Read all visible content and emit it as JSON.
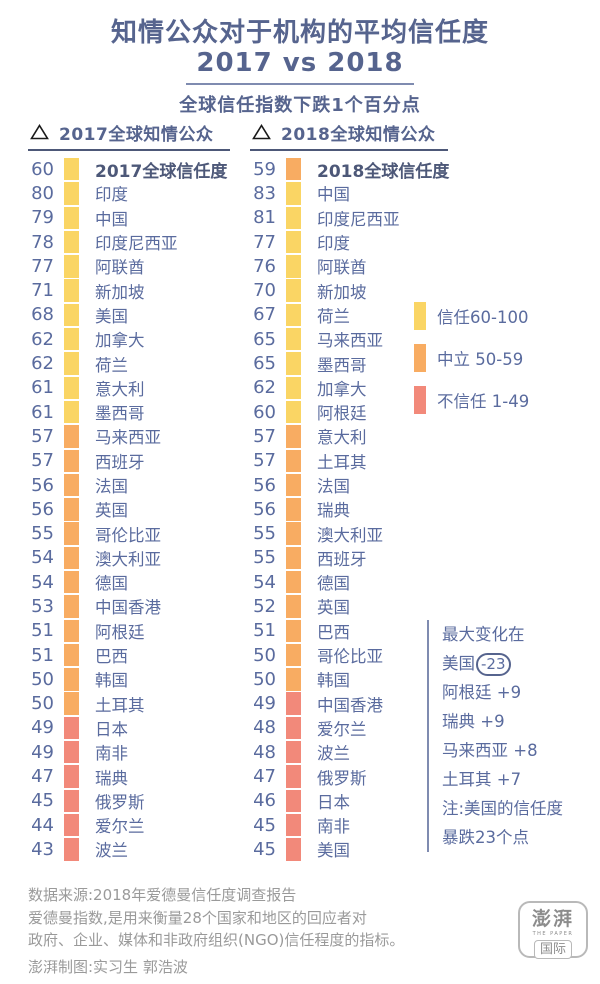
{
  "title": {
    "line1": "知情公众对于机构的平均信任度",
    "line2": "2017 vs 2018"
  },
  "subtitle": "全球信任指数下跌1个百分点",
  "colors": {
    "trust": "#FAD564",
    "neutral": "#F8AC62",
    "distrust": "#F2897A",
    "text": "#56648E",
    "footer_gray": "#9A9A9A"
  },
  "chart_data": {
    "type": "table",
    "title": "知情公众对于机构的平均信任度 2017 vs 2018",
    "subtitle": "全球信任指数下跌1个百分点",
    "legend_position": "right",
    "bands": [
      {
        "key": "trust",
        "label": "信任60-100",
        "range": [
          60,
          100
        ],
        "color": "#FAD564"
      },
      {
        "key": "neutral",
        "label": "中立 50-59",
        "range": [
          50,
          59
        ],
        "color": "#F8AC62"
      },
      {
        "key": "distrust",
        "label": "不信任 1-49",
        "range": [
          1,
          49
        ],
        "color": "#F2897A"
      }
    ],
    "columns": [
      {
        "header": "2017全球知情公众",
        "rows": [
          {
            "score": 60,
            "label": "2017全球信任度",
            "bold": true
          },
          {
            "score": 80,
            "label": "印度"
          },
          {
            "score": 79,
            "label": "中国"
          },
          {
            "score": 78,
            "label": "印度尼西亚"
          },
          {
            "score": 77,
            "label": "阿联酋"
          },
          {
            "score": 71,
            "label": "新加坡"
          },
          {
            "score": 68,
            "label": "美国"
          },
          {
            "score": 62,
            "label": "加拿大"
          },
          {
            "score": 62,
            "label": "荷兰"
          },
          {
            "score": 61,
            "label": "意大利"
          },
          {
            "score": 61,
            "label": "墨西哥"
          },
          {
            "score": 57,
            "label": "马来西亚"
          },
          {
            "score": 57,
            "label": "西班牙"
          },
          {
            "score": 56,
            "label": "法国"
          },
          {
            "score": 56,
            "label": "英国"
          },
          {
            "score": 55,
            "label": "哥伦比亚"
          },
          {
            "score": 54,
            "label": "澳大利亚"
          },
          {
            "score": 54,
            "label": "德国"
          },
          {
            "score": 53,
            "label": "中国香港"
          },
          {
            "score": 51,
            "label": "阿根廷"
          },
          {
            "score": 51,
            "label": "巴西"
          },
          {
            "score": 50,
            "label": "韩国"
          },
          {
            "score": 50,
            "label": "土耳其"
          },
          {
            "score": 49,
            "label": "日本"
          },
          {
            "score": 49,
            "label": "南非"
          },
          {
            "score": 47,
            "label": "瑞典"
          },
          {
            "score": 45,
            "label": "俄罗斯"
          },
          {
            "score": 44,
            "label": "爱尔兰"
          },
          {
            "score": 43,
            "label": "波兰"
          }
        ]
      },
      {
        "header": "2018全球知情公众",
        "rows": [
          {
            "score": 59,
            "label": "2018全球信任度",
            "bold": true
          },
          {
            "score": 83,
            "label": "中国"
          },
          {
            "score": 81,
            "label": "印度尼西亚"
          },
          {
            "score": 77,
            "label": "印度"
          },
          {
            "score": 76,
            "label": "阿联酋"
          },
          {
            "score": 70,
            "label": "新加坡"
          },
          {
            "score": 67,
            "label": "荷兰"
          },
          {
            "score": 65,
            "label": "马来西亚"
          },
          {
            "score": 65,
            "label": "墨西哥"
          },
          {
            "score": 62,
            "label": "加拿大"
          },
          {
            "score": 60,
            "label": "阿根廷"
          },
          {
            "score": 57,
            "label": "意大利"
          },
          {
            "score": 57,
            "label": "土耳其"
          },
          {
            "score": 56,
            "label": "法国"
          },
          {
            "score": 56,
            "label": "瑞典"
          },
          {
            "score": 55,
            "label": "澳大利亚"
          },
          {
            "score": 55,
            "label": "西班牙"
          },
          {
            "score": 54,
            "label": "德国"
          },
          {
            "score": 52,
            "label": "英国"
          },
          {
            "score": 51,
            "label": "巴西"
          },
          {
            "score": 50,
            "label": "哥伦比亚"
          },
          {
            "score": 50,
            "label": "韩国"
          },
          {
            "score": 49,
            "label": "中国香港"
          },
          {
            "score": 48,
            "label": "爱尔兰"
          },
          {
            "score": 48,
            "label": "波兰"
          },
          {
            "score": 47,
            "label": "俄罗斯"
          },
          {
            "score": 46,
            "label": "日本"
          },
          {
            "score": 45,
            "label": "南非"
          },
          {
            "score": 45,
            "label": "美国"
          }
        ]
      }
    ]
  },
  "annotation": {
    "line1": "最大变化在",
    "highlight_country": "美国",
    "highlight_value": "-23",
    "changes": [
      "阿根廷 +9",
      "瑞典 +9",
      "马来西亚 +8",
      "土耳其 +7"
    ],
    "note1": "注:美国的信任度",
    "note2": "暴跌23个点"
  },
  "footer": {
    "lines": [
      "数据来源:2018年爱德曼信任度调查报告",
      "爱德曼指数,是用来衡量28个国家和地区的回应者对",
      "政府、企业、媒体和非政府组织(NGO)信任程度的指标。",
      "澎湃制图:实习生 郭浩波"
    ],
    "logo": {
      "name": "澎湃",
      "tagline": "THE PAPER",
      "sub": "国际"
    }
  }
}
